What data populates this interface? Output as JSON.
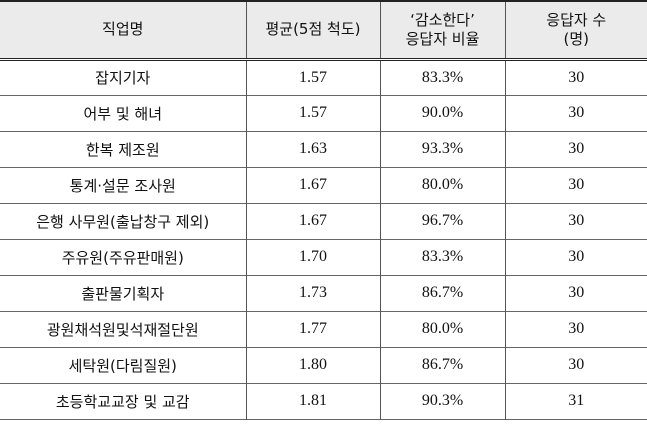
{
  "table": {
    "header": [
      "직업명",
      "평균(5점 척도)",
      "‘감소한다’\n응답자 비율",
      "응답자 수\n(명)"
    ],
    "rows": [
      [
        "잡지기자",
        "1.57",
        "83.3%",
        "30"
      ],
      [
        "어부 및 해녀",
        "1.57",
        "90.0%",
        "30"
      ],
      [
        "한복 제조원",
        "1.63",
        "93.3%",
        "30"
      ],
      [
        "통계·설문 조사원",
        "1.67",
        "80.0%",
        "30"
      ],
      [
        "은행 사무원(출납창구 제외)",
        "1.67",
        "96.7%",
        "30"
      ],
      [
        "주유원(주유판매원)",
        "1.70",
        "83.3%",
        "30"
      ],
      [
        "출판물기획자",
        "1.73",
        "86.7%",
        "30"
      ],
      [
        "광원채석원및석재절단원",
        "1.77",
        "80.0%",
        "30"
      ],
      [
        "세탁원(다림질원)",
        "1.80",
        "86.7%",
        "30"
      ],
      [
        "초등학교교장 및 교감",
        "1.81",
        "90.3%",
        "31"
      ]
    ]
  }
}
